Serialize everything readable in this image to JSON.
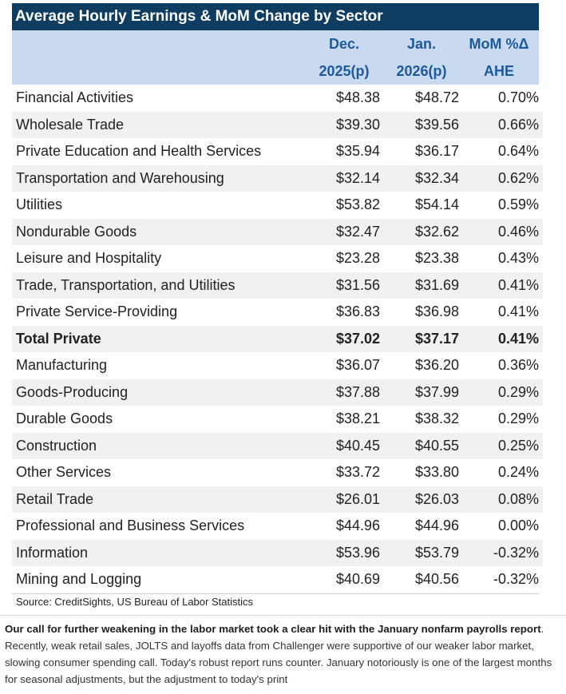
{
  "title": "Average Hourly Earnings & MoM Change by Sector",
  "headers": {
    "dec_line1": "Dec.",
    "dec_line2": "2025(p)",
    "jan_line1": "Jan.",
    "jan_line2": "2026(p)",
    "mom_line1": "MoM %Δ",
    "mom_line2": "AHE"
  },
  "rows": [
    {
      "sector": "Financial Activities",
      "dec": "$48.38",
      "jan": "$48.72",
      "mom": "0.70%"
    },
    {
      "sector": "Wholesale Trade",
      "dec": "$39.30",
      "jan": "$39.56",
      "mom": "0.66%"
    },
    {
      "sector": "Private Education and Health Services",
      "dec": "$35.94",
      "jan": "$36.17",
      "mom": "0.64%"
    },
    {
      "sector": "Transportation and Warehousing",
      "dec": "$32.14",
      "jan": "$32.34",
      "mom": "0.62%"
    },
    {
      "sector": "Utilities",
      "dec": "$53.82",
      "jan": "$54.14",
      "mom": "0.59%"
    },
    {
      "sector": "Nondurable Goods",
      "dec": "$32.47",
      "jan": "$32.62",
      "mom": "0.46%"
    },
    {
      "sector": "Leisure and Hospitality",
      "dec": "$23.28",
      "jan": "$23.38",
      "mom": "0.43%"
    },
    {
      "sector": "Trade, Transportation, and Utilities",
      "dec": "$31.56",
      "jan": "$31.69",
      "mom": "0.41%"
    },
    {
      "sector": "Private Service-Providing",
      "dec": "$36.83",
      "jan": "$36.98",
      "mom": "0.41%"
    },
    {
      "sector": "Total Private",
      "dec": "$37.02",
      "jan": "$37.17",
      "mom": "0.41%",
      "bold": true
    },
    {
      "sector": "Manufacturing",
      "dec": "$36.07",
      "jan": "$36.20",
      "mom": "0.36%"
    },
    {
      "sector": "Goods-Producing",
      "dec": "$37.88",
      "jan": "$37.99",
      "mom": "0.29%"
    },
    {
      "sector": "Durable Goods",
      "dec": "$38.21",
      "jan": "$38.32",
      "mom": "0.29%"
    },
    {
      "sector": "Construction",
      "dec": "$40.45",
      "jan": "$40.55",
      "mom": "0.25%"
    },
    {
      "sector": "Other Services",
      "dec": "$33.72",
      "jan": "$33.80",
      "mom": "0.24%"
    },
    {
      "sector": "Retail Trade",
      "dec": "$26.01",
      "jan": "$26.03",
      "mom": "0.08%"
    },
    {
      "sector": "Professional and Business Services",
      "dec": "$44.96",
      "jan": "$44.96",
      "mom": "0.00%"
    },
    {
      "sector": "Information",
      "dec": "$53.96",
      "jan": "$53.79",
      "mom": "-0.32%"
    },
    {
      "sector": "Mining and Logging",
      "dec": "$40.69",
      "jan": "$40.56",
      "mom": "-0.32%"
    }
  ],
  "source": "Source: CreditSights, US Bureau of Labor Statistics",
  "paragraph": {
    "bold_lead": "Our call for further weakening in the labor market took a clear hit with the January nonfarm payrolls report",
    "body": ". Recently, weak retail sales, JOLTS and layoffs data from Challenger were supportive of our weaker labor market, slowing consumer spending call. Today's robust report runs counter. January notoriously is one of the largest months for seasonal adjustments, but the adjustment to today's print"
  },
  "colors": {
    "title_bg": "#0f3c61",
    "header_bg": "#c9daf0",
    "header_text": "#1d5a9c",
    "stripe": "#f1f1f1"
  }
}
